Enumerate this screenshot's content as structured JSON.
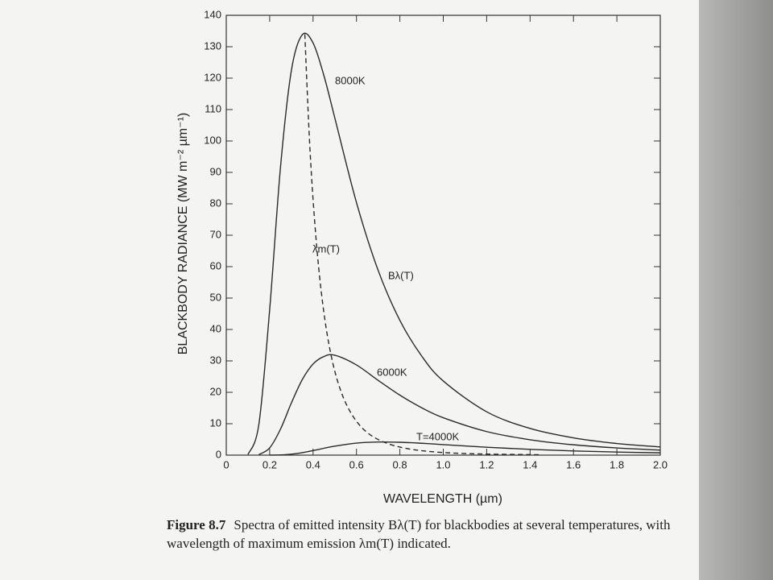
{
  "chart_data": {
    "type": "line",
    "xlabel": "WAVELENGTH (µm)",
    "ylabel": "BLACKBODY RADIANCE (MW m⁻² µm⁻¹)",
    "annotation": "Bλ(T)",
    "xlim": [
      0,
      2
    ],
    "ylim": [
      0,
      140
    ],
    "xticks": [
      0,
      0.2,
      0.4,
      0.6,
      0.8,
      {
        "value": 1,
        "label": "1.0"
      },
      1.2,
      1.4,
      1.6,
      1.8,
      {
        "value": 2,
        "label": "2.0"
      }
    ],
    "yticks": [
      0,
      10,
      20,
      30,
      40,
      50,
      60,
      70,
      80,
      90,
      100,
      110,
      120,
      130,
      140
    ],
    "series": [
      {
        "name": "8000K",
        "color": "#2a2a2a",
        "dashed": false,
        "x": [
          0.1,
          0.15,
          0.2,
          0.25,
          0.3,
          0.35,
          0.4,
          0.45,
          0.5,
          0.6,
          0.7,
          0.8,
          0.9,
          1.0,
          1.2,
          1.4,
          1.6,
          1.8,
          2.0
        ],
        "values": [
          0.18,
          9.7,
          46.3,
          91.7,
          122.4,
          133.8,
          131.2,
          120.8,
          107.4,
          80.4,
          58.8,
          42.9,
          31.6,
          23.6,
          13.8,
          8.5,
          5.5,
          3.7,
          2.6
        ]
      },
      {
        "name": "6000K",
        "color": "#2a2a2a",
        "dashed": false,
        "x": [
          0.15,
          0.2,
          0.25,
          0.3,
          0.35,
          0.4,
          0.45,
          0.5,
          0.6,
          0.7,
          0.8,
          0.9,
          1.0,
          1.2,
          1.4,
          1.6,
          1.8,
          2.0
        ],
        "values": [
          0.18,
          2.3,
          8.3,
          16.6,
          24.0,
          29.0,
          31.4,
          31.8,
          28.7,
          23.8,
          19.1,
          15.1,
          11.9,
          7.5,
          4.9,
          3.3,
          2.3,
          1.6
        ]
      },
      {
        "name": "T=4000K",
        "color": "#2a2a2a",
        "dashed": false,
        "x": [
          0.2,
          0.25,
          0.3,
          0.35,
          0.4,
          0.45,
          0.5,
          0.6,
          0.7,
          0.8,
          0.9,
          1.0,
          1.2,
          1.4,
          1.6,
          1.8,
          2.0
        ],
        "values": [
          0.01,
          0.07,
          0.3,
          0.78,
          1.45,
          2.18,
          2.86,
          3.83,
          4.18,
          4.1,
          3.78,
          3.36,
          2.51,
          1.84,
          1.34,
          0.99,
          0.74
        ]
      },
      {
        "name": "λm(T)",
        "color": "#2a2a2a",
        "dashed": true,
        "x": [
          0.362,
          0.386,
          0.414,
          0.446,
          0.483,
          0.527,
          0.58,
          0.644,
          0.725,
          0.828,
          0.966,
          1.159,
          1.449
        ],
        "values": [
          134,
          97,
          68.7,
          47.4,
          31.8,
          20.6,
          12.8,
          7.5,
          4.19,
          2.15,
          0.99,
          0.4,
          0.13
        ]
      }
    ]
  },
  "caption": {
    "label": "Figure 8.7",
    "text": "Spectra of emitted intensity Bλ(T) for blackbodies at several temperatures, with wavelength of maximum emission λm(T) indicated."
  }
}
